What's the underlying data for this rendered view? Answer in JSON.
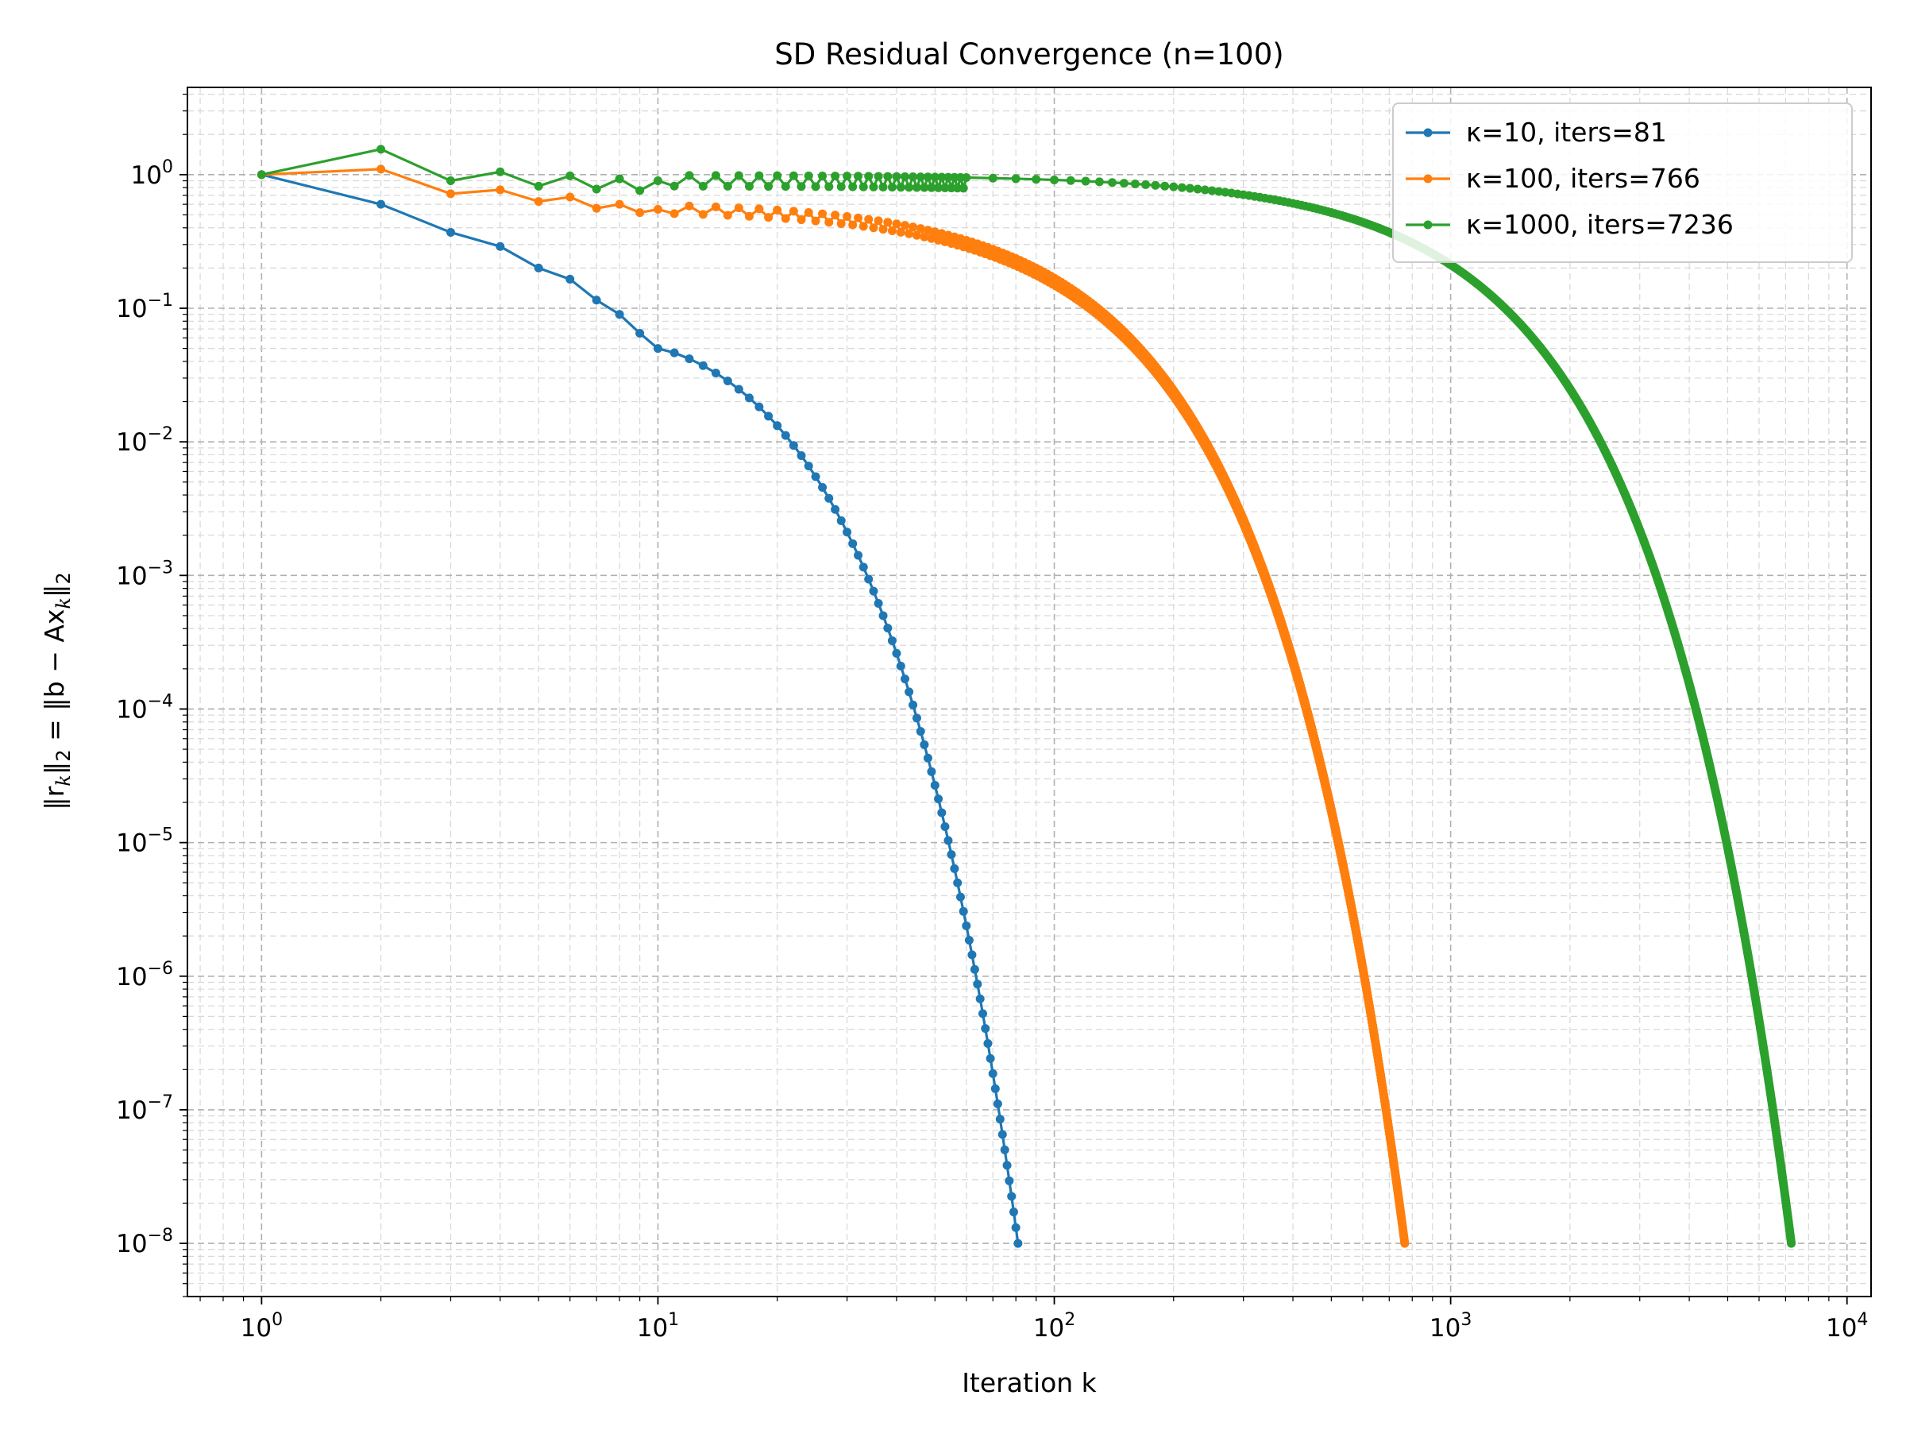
{
  "chart_data": {
    "type": "line",
    "title": "SD Residual Convergence (n=100)",
    "xlabel": "Iteration k",
    "ylabel": {
      "lhs": "‖r",
      "lhs_sub": "k",
      "lhs_norm": "‖",
      "lhs_norm_sub": "2",
      "eq": " = ‖b − Ax",
      "rhs_sub": "k",
      "rhs_norm": "‖",
      "rhs_norm_sub": "2"
    },
    "xscale": "log",
    "yscale": "log",
    "xlim": [
      0.65,
      11500
    ],
    "ylim": [
      4e-09,
      4.5
    ],
    "grid": true,
    "legend_position": "top-right",
    "x_ticks": [
      {
        "base": "10",
        "exp": "0",
        "value": 1
      },
      {
        "base": "10",
        "exp": "1",
        "value": 10
      },
      {
        "base": "10",
        "exp": "2",
        "value": 100
      },
      {
        "base": "10",
        "exp": "3",
        "value": 1000
      },
      {
        "base": "10",
        "exp": "4",
        "value": 10000
      }
    ],
    "y_ticks": [
      {
        "base": "10",
        "exp": "0",
        "value": 1
      },
      {
        "base": "10",
        "exp": "−1",
        "value": 0.1
      },
      {
        "base": "10",
        "exp": "−2",
        "value": 0.01
      },
      {
        "base": "10",
        "exp": "−3",
        "value": 0.001
      },
      {
        "base": "10",
        "exp": "−4",
        "value": 0.0001
      },
      {
        "base": "10",
        "exp": "−5",
        "value": 1e-05
      },
      {
        "base": "10",
        "exp": "−6",
        "value": 1e-06
      },
      {
        "base": "10",
        "exp": "−7",
        "value": 1e-07
      },
      {
        "base": "10",
        "exp": "−8",
        "value": 1e-08
      }
    ],
    "series": [
      {
        "name": "κ=10, iters=81",
        "color": "#1f77b4",
        "iters": 81,
        "start_points": [
          [
            1,
            1.0
          ],
          [
            2,
            0.6
          ],
          [
            3,
            0.37
          ],
          [
            4,
            0.29
          ],
          [
            5,
            0.2
          ],
          [
            6,
            0.165
          ],
          [
            7,
            0.115
          ],
          [
            8,
            0.09
          ],
          [
            9,
            0.065
          ],
          [
            10,
            0.05
          ]
        ],
        "final_value": 1e-08
      },
      {
        "name": "κ=100, iters=766",
        "color": "#ff7f0e",
        "iters": 766,
        "start_points": [
          [
            1,
            1.0
          ],
          [
            2,
            1.1
          ],
          [
            3,
            0.72
          ],
          [
            4,
            0.77
          ],
          [
            5,
            0.63
          ],
          [
            6,
            0.68
          ],
          [
            7,
            0.56
          ],
          [
            8,
            0.6
          ],
          [
            9,
            0.52
          ],
          [
            10,
            0.55
          ]
        ],
        "final_value": 1e-08
      },
      {
        "name": "κ=1000, iters=7236",
        "color": "#2ca02c",
        "iters": 7236,
        "start_points": [
          [
            1,
            1.0
          ],
          [
            2,
            1.55
          ],
          [
            3,
            0.9
          ],
          [
            4,
            1.05
          ],
          [
            5,
            0.82
          ],
          [
            6,
            0.98
          ],
          [
            7,
            0.78
          ],
          [
            8,
            0.93
          ],
          [
            9,
            0.76
          ],
          [
            10,
            0.9
          ]
        ],
        "final_value": 1e-08
      }
    ]
  }
}
